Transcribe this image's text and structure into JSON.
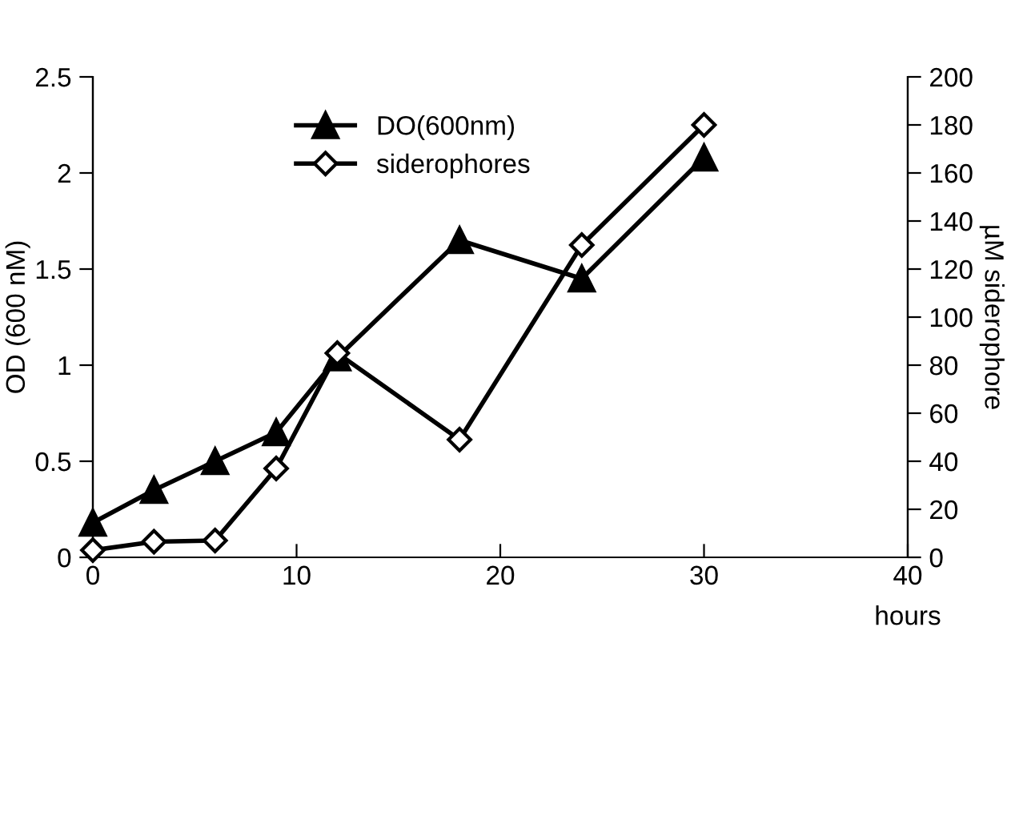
{
  "chart_data": {
    "type": "line",
    "xlabel": "hours",
    "ylabel": "OD (600 nM)",
    "y2label": "µM siderophore",
    "x": [
      0,
      3,
      6,
      9,
      12,
      18,
      24,
      30
    ],
    "series": [
      {
        "name": "DO(600nm)",
        "color": "#000000",
        "marker": "triangle",
        "values": [
          0.18,
          0.35,
          0.5,
          0.65,
          1.04,
          1.65,
          1.45,
          2.08
        ]
      },
      {
        "name": "siderophores",
        "color": "#000000",
        "marker": "diamond",
        "axis": "y2",
        "values": [
          3,
          6.5,
          7,
          37,
          85,
          49,
          130,
          180
        ]
      }
    ],
    "xlim": [
      0,
      40
    ],
    "xticks": [
      0,
      10,
      20,
      30,
      40
    ],
    "ylim": [
      0,
      2.5
    ],
    "yticks": [
      0,
      0.5,
      1,
      1.5,
      2,
      2.5
    ],
    "y2lim": [
      0,
      200
    ],
    "y2ticks": [
      0,
      20,
      40,
      60,
      80,
      100,
      120,
      140,
      160,
      180,
      200
    ],
    "legend": "top left",
    "grid": false,
    "line_style": "solid"
  }
}
